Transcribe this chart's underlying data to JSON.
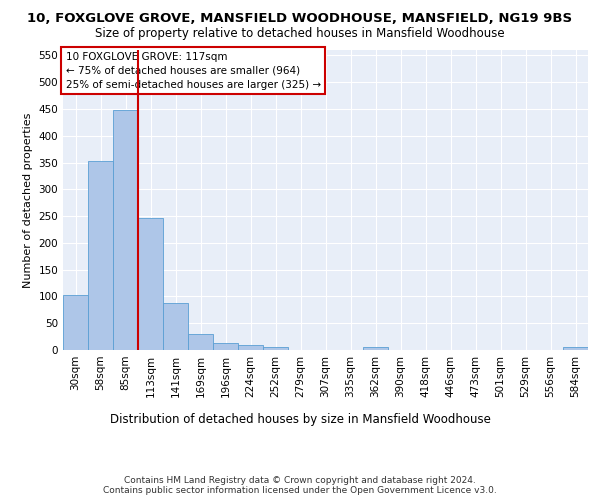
{
  "title1": "10, FOXGLOVE GROVE, MANSFIELD WOODHOUSE, MANSFIELD, NG19 9BS",
  "title2": "Size of property relative to detached houses in Mansfield Woodhouse",
  "xlabel": "Distribution of detached houses by size in Mansfield Woodhouse",
  "ylabel": "Number of detached properties",
  "footnote": "Contains HM Land Registry data © Crown copyright and database right 2024.\nContains public sector information licensed under the Open Government Licence v3.0.",
  "bar_labels": [
    "30sqm",
    "58sqm",
    "85sqm",
    "113sqm",
    "141sqm",
    "169sqm",
    "196sqm",
    "224sqm",
    "252sqm",
    "279sqm",
    "307sqm",
    "335sqm",
    "362sqm",
    "390sqm",
    "418sqm",
    "446sqm",
    "473sqm",
    "501sqm",
    "529sqm",
    "556sqm",
    "584sqm"
  ],
  "bar_values": [
    103,
    353,
    448,
    246,
    88,
    30,
    14,
    9,
    5,
    0,
    0,
    0,
    5,
    0,
    0,
    0,
    0,
    0,
    0,
    0,
    5
  ],
  "bar_color": "#aec6e8",
  "bar_edge_color": "#5a9fd4",
  "background_color": "#e8eef8",
  "grid_color": "#ffffff",
  "ylim": [
    0,
    560
  ],
  "yticks": [
    0,
    50,
    100,
    150,
    200,
    250,
    300,
    350,
    400,
    450,
    500,
    550
  ],
  "annotation_title": "10 FOXGLOVE GROVE: 117sqm",
  "annotation_line1": "← 75% of detached houses are smaller (964)",
  "annotation_line2": "25% of semi-detached houses are larger (325) →",
  "annotation_box_color": "#ffffff",
  "annotation_box_edge": "#cc0000",
  "red_line_color": "#cc0000",
  "title1_fontsize": 9.5,
  "title2_fontsize": 8.5,
  "xlabel_fontsize": 8.5,
  "ylabel_fontsize": 8,
  "tick_fontsize": 7.5,
  "footnote_fontsize": 6.5,
  "annotation_fontsize": 7.5
}
